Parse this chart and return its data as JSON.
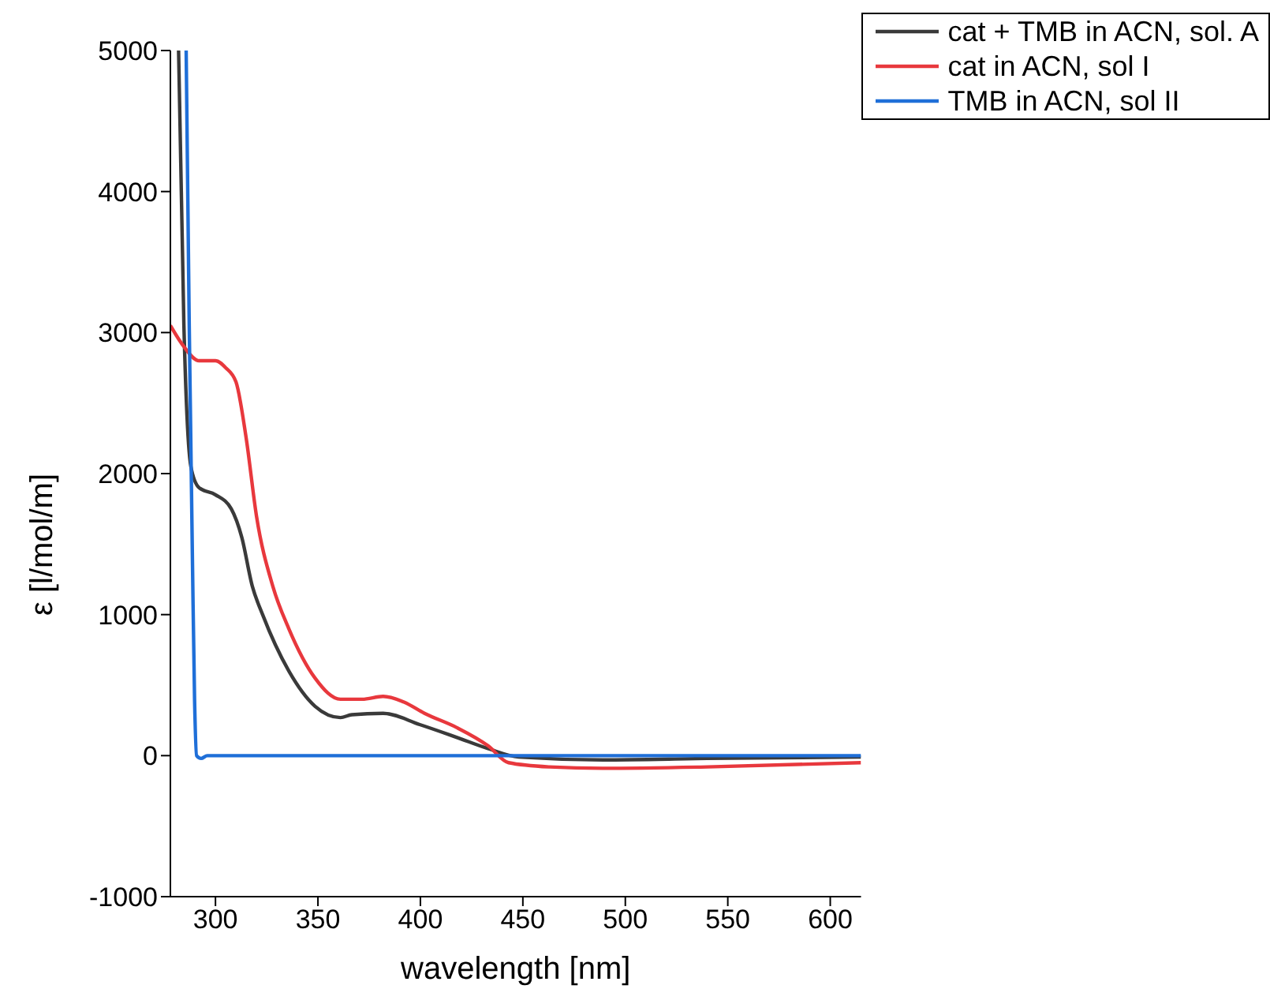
{
  "chart_data": {
    "type": "line",
    "xlabel": "wavelength [nm]",
    "ylabel": "ε [l/mol/m]",
    "xlim": [
      278,
      615
    ],
    "xticks": [
      300,
      350,
      400,
      450,
      500,
      550,
      600
    ],
    "ylim": [
      -1000,
      5000
    ],
    "yticks": [
      -1000,
      0,
      1000,
      2000,
      3000,
      4000,
      5000
    ],
    "grid": false,
    "legend": "top right",
    "marker": "none",
    "line_style": "solid",
    "series": [
      {
        "name": "cat + TMB in ACN, sol. A",
        "color": "#3a3a3a",
        "x": [
          282,
          284.6,
          288,
          292,
          300,
          307.7,
          312.8,
          318,
          323,
          335.8,
          348.6,
          361,
          366.5,
          381.8,
          399.7,
          417.6,
          433,
          448,
          489,
          540,
          615
        ],
        "values": [
          5000,
          3050,
          2050,
          1900,
          1850,
          1750,
          1550,
          1200,
          1000,
          600,
          350,
          270,
          290,
          300,
          220,
          130,
          50,
          -10,
          -30,
          -20,
          -10
        ]
      },
      {
        "name": "cat in ACN, sol I",
        "color": "#e8383d",
        "x": [
          278,
          284.6,
          292,
          300,
          305,
          310,
          315,
          320,
          328,
          335.8,
          348.6,
          361,
          371.6,
          381.8,
          392,
          402,
          417.6,
          433,
          443,
          463,
          489,
          540,
          615
        ],
        "values": [
          3050,
          2900,
          2800,
          2800,
          2750,
          2650,
          2250,
          1700,
          1200,
          900,
          550,
          400,
          400,
          420,
          380,
          300,
          200,
          70,
          -50,
          -80,
          -90,
          -80,
          -50
        ]
      },
      {
        "name": "TMB in ACN, sol II",
        "color": "#1f6fd8",
        "x": [
          285.7,
          287.2,
          288.8,
          289.8,
          290.8,
          293,
          296,
          615
        ],
        "values": [
          5000,
          3050,
          1350,
          400,
          0,
          -20,
          0,
          0
        ]
      }
    ]
  }
}
